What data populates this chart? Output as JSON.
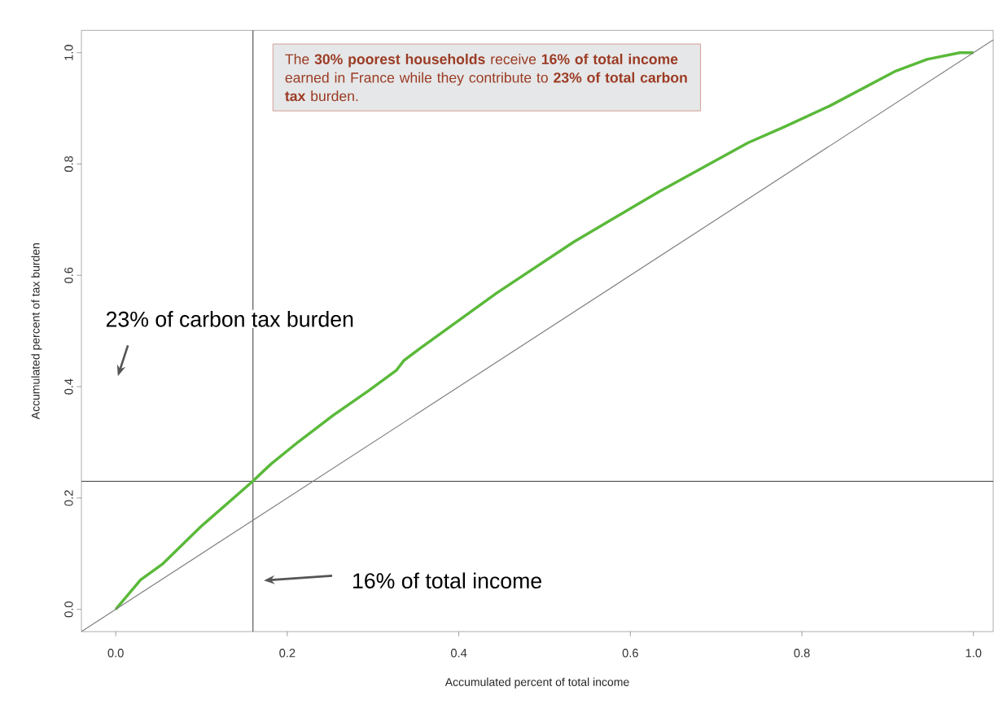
{
  "chart_data": {
    "type": "line",
    "xlabel": "Accumulated percent of total income",
    "ylabel": "Accumulated percent of tax burden",
    "xlim": [
      -0.04,
      1.023
    ],
    "ylim": [
      -0.04,
      1.04
    ],
    "xticks": [
      {
        "value": 0,
        "label": "0.0"
      },
      {
        "value": 0.2,
        "label": "0.2"
      },
      {
        "value": 0.4,
        "label": "0.4"
      },
      {
        "value": 0.6,
        "label": "0.6"
      },
      {
        "value": 0.8,
        "label": "0.8"
      },
      {
        "value": 1,
        "label": "1.0"
      }
    ],
    "yticks": [
      {
        "value": 0,
        "label": "0.0"
      },
      {
        "value": 0.2,
        "label": "0.2"
      },
      {
        "value": 0.4,
        "label": "0.4"
      },
      {
        "value": 0.6,
        "label": "0.6"
      },
      {
        "value": 0.8,
        "label": "0.8"
      },
      {
        "value": 1,
        "label": "1.0"
      }
    ],
    "series": [
      {
        "color": "#5ab93a",
        "x": [
          0,
          0.029,
          0.055,
          0.0995,
          0.159,
          0.181,
          0.213,
          0.254,
          0.295,
          0.327,
          0.336,
          0.355,
          0.444,
          0.534,
          0.633,
          0.737,
          0.78,
          0.832,
          0.908,
          0.946,
          0.984,
          1
        ],
        "values": [
          0,
          0.053,
          0.082,
          0.149,
          0.229,
          0.261,
          0.301,
          0.349,
          0.393,
          0.429,
          0.447,
          0.469,
          0.568,
          0.66,
          0.75,
          0.838,
          0.867,
          0.904,
          0.966,
          0.988,
          1.0,
          1.0
        ]
      },
      {
        "color": "#808080",
        "x": [
          -0.04,
          1.023
        ],
        "values": [
          -0.04,
          1.023
        ]
      }
    ],
    "ref_lines": [
      {
        "axis": "x",
        "value": 0.16,
        "color": "#555555"
      },
      {
        "axis": "y",
        "value": 0.23,
        "color": "#555555"
      }
    ],
    "annotations": [
      "The **30% poorest households** receive **16% of total income** earned in France while they contribute to **23% of total carbon tax** burden.",
      "23% of carbon tax burden",
      "16% of total income"
    ]
  }
}
